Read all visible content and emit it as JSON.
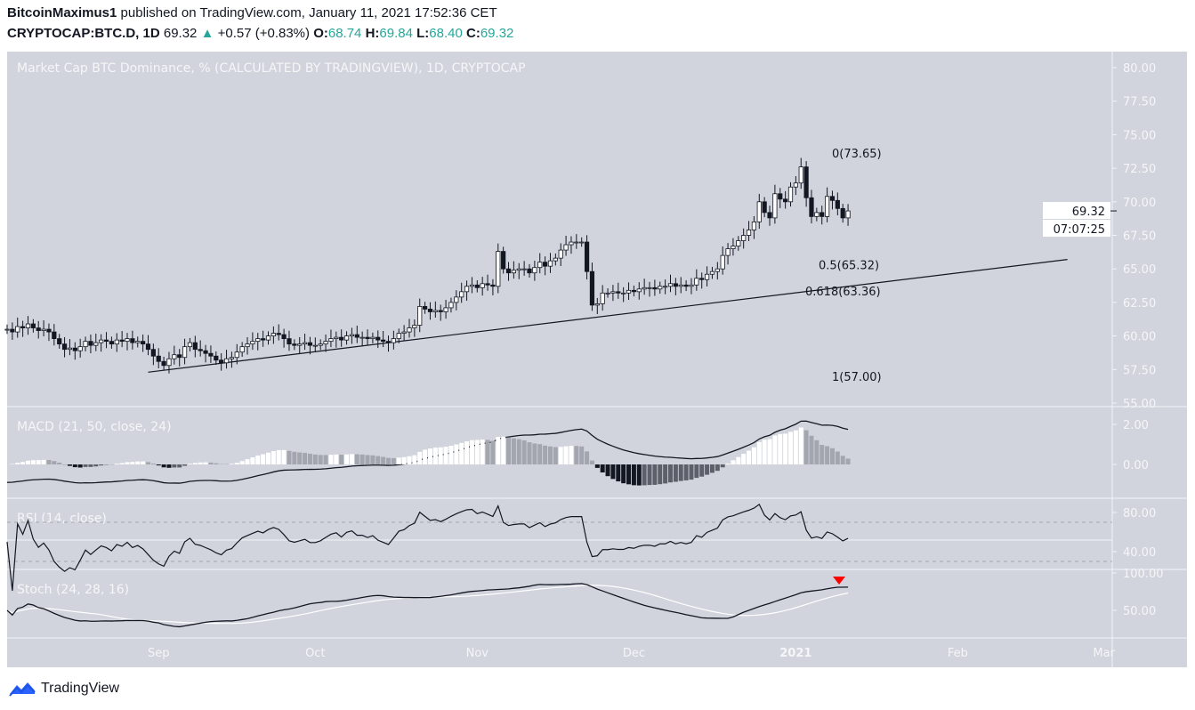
{
  "header": {
    "author": "BitcoinMaximus1",
    "published": "published on TradingView.com, January 11, 2021 17:52:36 CET",
    "symbol": "CRYPTOCAP:BTC.D, 1D",
    "last": "69.32",
    "change": "+0.57 (+0.83%)",
    "o_label": "O:",
    "o": "68.74",
    "h_label": "H:",
    "h": "69.84",
    "l_label": "L:",
    "l": "68.40",
    "c_label": "C:",
    "c": "69.32",
    "up_color": "#26a69a"
  },
  "footer": {
    "brand": "TradingView",
    "logo_color": "#2962ff"
  },
  "chart_data": {
    "type": "candlestick",
    "title": "Market Cap BTC Dominance, % (CALCULATED BY TRADINGVIEW), 1D, CRYPTOCAP",
    "start_date": "2020-08-03",
    "closes": [
      60.5,
      60.3,
      60.7,
      60.6,
      60.9,
      60.6,
      60.4,
      60.5,
      60.3,
      59.8,
      59.4,
      59.0,
      59.1,
      58.9,
      59.2,
      59.6,
      59.3,
      59.5,
      59.7,
      59.6,
      59.4,
      59.7,
      59.6,
      59.8,
      59.5,
      59.6,
      59.4,
      59.0,
      58.5,
      58.1,
      57.8,
      58.3,
      58.6,
      58.4,
      59.2,
      59.5,
      59.0,
      58.9,
      58.7,
      58.5,
      58.2,
      58.0,
      58.3,
      58.4,
      58.8,
      59.2,
      59.4,
      59.6,
      59.8,
      59.7,
      60.0,
      60.2,
      60.1,
      59.8,
      59.4,
      59.3,
      59.4,
      59.5,
      59.3,
      59.3,
      59.4,
      59.6,
      59.8,
      59.9,
      59.7,
      60.0,
      60.1,
      59.9,
      59.9,
      59.8,
      59.9,
      59.7,
      59.6,
      59.5,
      59.8,
      60.2,
      60.3,
      60.6,
      60.8,
      62.2,
      62.0,
      61.8,
      61.9,
      61.8,
      62.1,
      62.5,
      62.9,
      63.3,
      63.7,
      63.8,
      63.6,
      63.9,
      63.8,
      63.7,
      66.3,
      65.0,
      64.7,
      64.9,
      65.0,
      65.0,
      64.7,
      65.1,
      65.5,
      65.2,
      65.6,
      65.8,
      66.4,
      66.8,
      67.0,
      67.0,
      67.0,
      64.8,
      62.3,
      62.4,
      63.2,
      63.2,
      63.3,
      63.2,
      63.2,
      63.4,
      63.3,
      63.5,
      63.6,
      63.6,
      63.5,
      63.7,
      63.7,
      63.9,
      63.7,
      63.8,
      63.7,
      63.8,
      64.3,
      64.2,
      64.6,
      64.8,
      65.0,
      66.0,
      66.5,
      66.7,
      67.1,
      67.5,
      67.9,
      68.5,
      70.0,
      69.2,
      68.8,
      70.6,
      70.2,
      70.0,
      71.1,
      71.4,
      72.6,
      70.3,
      68.9,
      69.2,
      68.9,
      70.4,
      70.1,
      69.5,
      68.8,
      69.32
    ],
    "ylim": [
      55,
      80
    ],
    "yticks": [
      "80.00",
      "77.50",
      "75.00",
      "72.50",
      "70.00",
      "67.50",
      "65.00",
      "62.50",
      "60.00",
      "57.50",
      "55.00"
    ],
    "last_price_label": "69.32",
    "countdown_label": "07:07:25",
    "xticks": [
      {
        "label": "Sep",
        "date": "2020-09-01",
        "bold": false
      },
      {
        "label": "Oct",
        "date": "2020-10-01",
        "bold": false
      },
      {
        "label": "Nov",
        "date": "2020-11-01",
        "bold": false
      },
      {
        "label": "Dec",
        "date": "2020-12-01",
        "bold": false
      },
      {
        "label": "2021",
        "date": "2021-01-01",
        "bold": true
      },
      {
        "label": "Feb",
        "date": "2021-02-01",
        "bold": false
      },
      {
        "label": "Mar",
        "date": "2021-03-01",
        "bold": false
      }
    ],
    "trendline": [
      [
        "2020-08-30",
        57.3
      ],
      [
        "2021-02-22",
        65.7
      ]
    ],
    "fib_levels": [
      {
        "label": "0(73.65)",
        "price": 73.65
      },
      {
        "label": "0.5(65.32)",
        "price": 65.32
      },
      {
        "label": "0.618(63.36)",
        "price": 63.36
      },
      {
        "label": "1(57.00)",
        "price": 57.0
      }
    ],
    "indicators": {
      "macd": {
        "title": "MACD (21, 50, close, 24)",
        "ticks": [
          "2.00",
          "0.00"
        ]
      },
      "rsi": {
        "title": "RSI (14, close)",
        "ticks": [
          "80.00",
          "40.00"
        ],
        "bands": [
          70,
          30
        ]
      },
      "stoch": {
        "title": "Stoch (24, 28, 16)",
        "ticks": [
          "100.00",
          "50.00"
        ],
        "signal": "bearish cross (red down triangle)"
      }
    },
    "colors": {
      "background": "#d1d4dc",
      "up": "#ffffff",
      "down": "#131722",
      "signal_marker": "#ff0000",
      "hist_pos": "#ffffff",
      "hist_neg": "#131722"
    }
  }
}
